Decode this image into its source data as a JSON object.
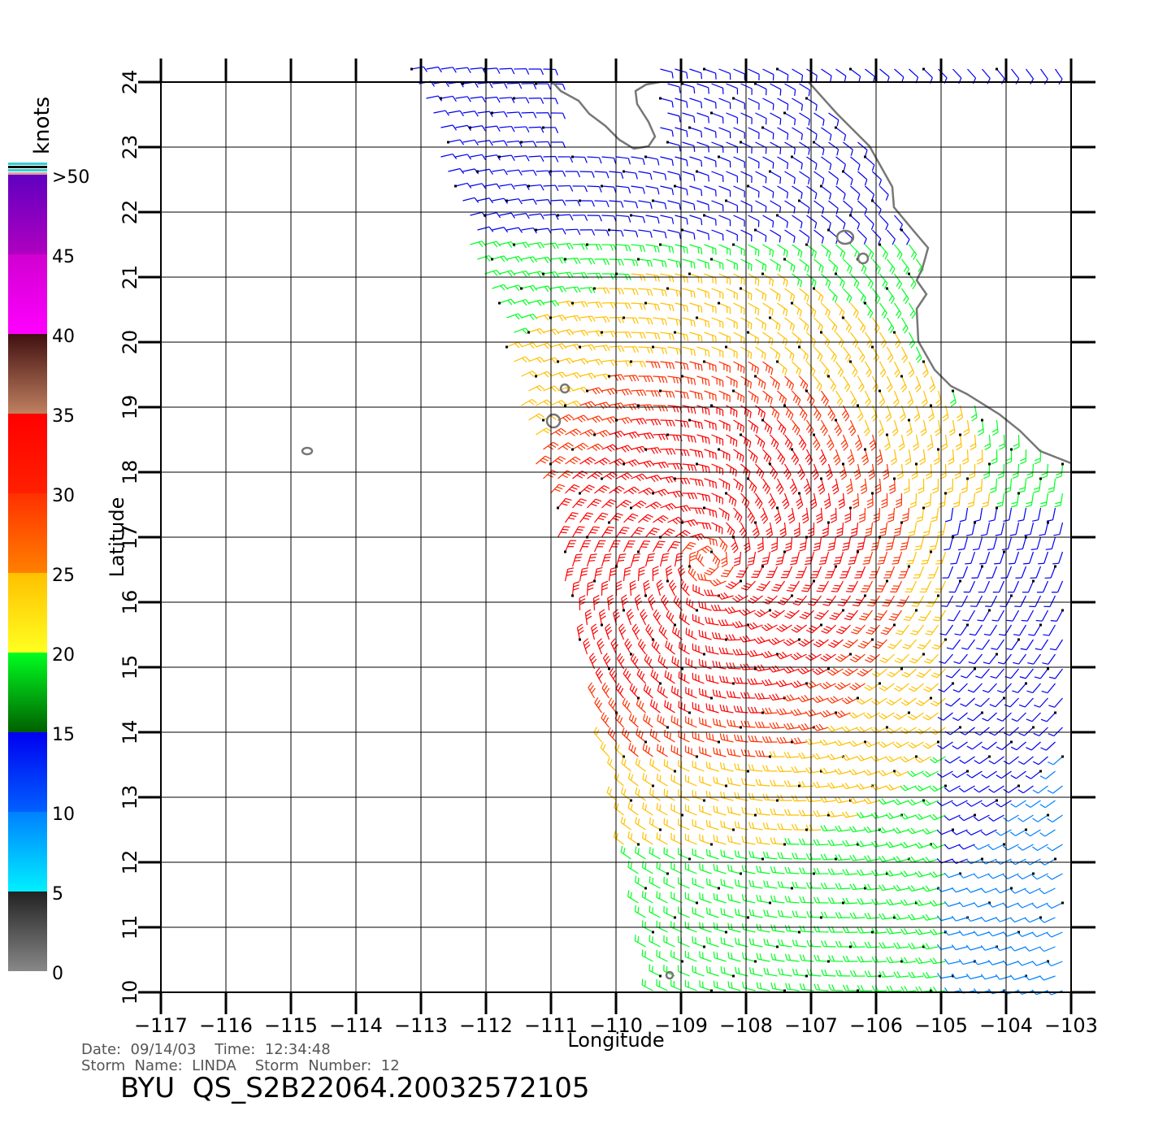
{
  "map": {
    "xlim": [
      -117,
      -103
    ],
    "ylim": [
      10,
      24
    ],
    "xticks": [
      {
        "value": -117,
        "label": "−117"
      },
      {
        "value": -116,
        "label": "−116"
      },
      {
        "value": -115,
        "label": "−115"
      },
      {
        "value": -114,
        "label": "−114"
      },
      {
        "value": -113,
        "label": "−113"
      },
      {
        "value": -112,
        "label": "−112"
      },
      {
        "value": -111,
        "label": "−111"
      },
      {
        "value": -110,
        "label": "−110"
      },
      {
        "value": -109,
        "label": "−109"
      },
      {
        "value": -108,
        "label": "−108"
      },
      {
        "value": -107,
        "label": "−107"
      },
      {
        "value": -106,
        "label": "−106"
      },
      {
        "value": -105,
        "label": "−105"
      },
      {
        "value": -104,
        "label": "−104"
      },
      {
        "value": -103,
        "label": "−103"
      }
    ],
    "yticks": [
      10,
      11,
      12,
      13,
      14,
      15,
      16,
      17,
      18,
      19,
      20,
      21,
      22,
      23,
      24
    ],
    "xlabel": "Longitude",
    "ylabel": "Latitude"
  },
  "colorbar": {
    "title": "knots",
    "lim": [
      0,
      50
    ],
    "ticks": [
      0,
      5,
      10,
      15,
      20,
      25,
      30,
      35,
      40,
      45,
      {
        "value": 50,
        "label": ">50"
      }
    ],
    "colors": [
      [
        "#888888",
        "#222222"
      ],
      [
        "#00f0ff",
        "#0080ff"
      ],
      [
        "#0060ff",
        "#0000f0"
      ],
      [
        "#006000",
        "#00ff20"
      ],
      [
        "#ffff20",
        "#ffc000"
      ],
      [
        "#ff8000",
        "#ff3000"
      ],
      [
        "#ff2000",
        "#ff0000"
      ],
      [
        "#c08060",
        "#401010"
      ],
      [
        "#ff00ff",
        "#d000d0"
      ],
      [
        "#b000c0",
        "#6000c0"
      ]
    ]
  },
  "footer": {
    "date": "Date:  09/14/03    Time:  12:34:48",
    "storm": "Storm  Name:  LINDA    Storm  Number:  12",
    "id": "BYU  QS_S2B22064.20032572105"
  }
}
